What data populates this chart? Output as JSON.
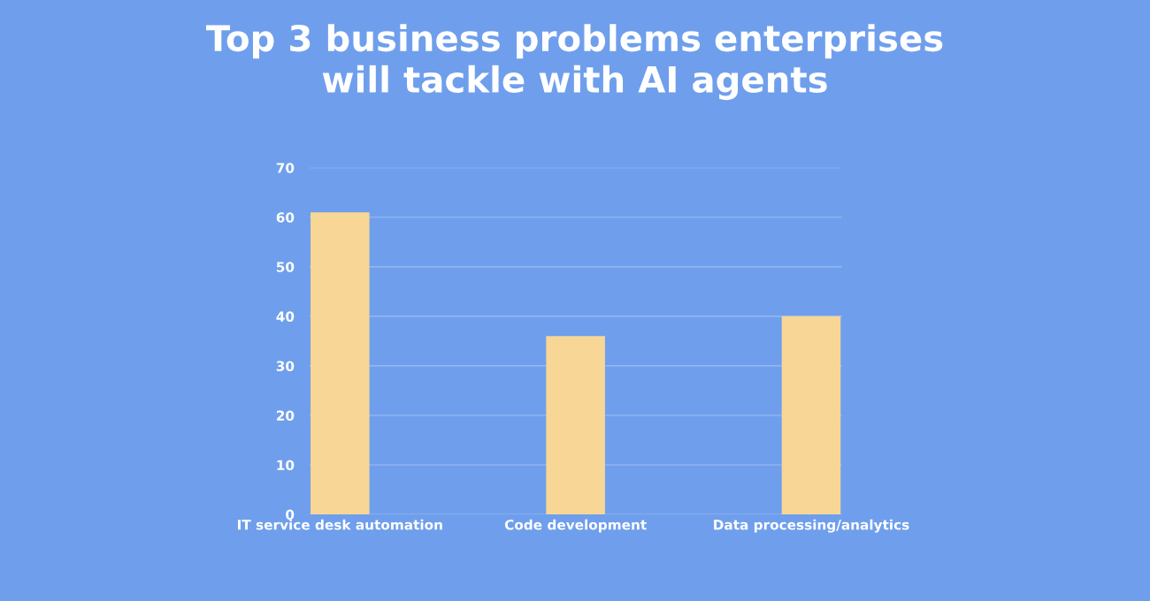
{
  "chart_data": {
    "type": "bar",
    "title": "Top 3 business problems enterprises\nwill tackle with AI agents",
    "categories": [
      "IT service desk automation",
      "Code development",
      "Data processing/analytics"
    ],
    "values": [
      61,
      36,
      40
    ],
    "color": "#f7d696",
    "ylim": [
      0,
      70
    ],
    "yticks": [
      0,
      10,
      20,
      30,
      40,
      50,
      60,
      70
    ],
    "grid": "y"
  }
}
